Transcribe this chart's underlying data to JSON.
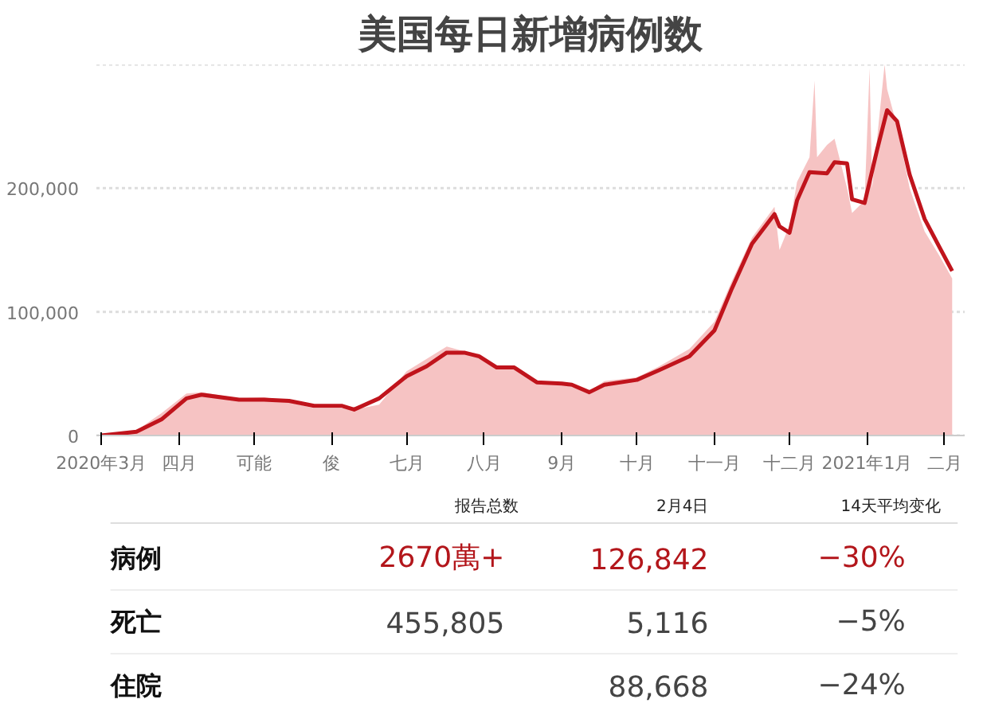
{
  "chart_data": {
    "type": "area",
    "title": "美国每日新增病例数",
    "series": [
      {
        "color": "#f6c3c3",
        "x": [
          "2020-03-01",
          "2020-03-15",
          "2020-03-25",
          "2020-04-04",
          "2020-04-10",
          "2020-04-25",
          "2020-05-05",
          "2020-05-15",
          "2020-05-25",
          "2020-06-05",
          "2020-06-10",
          "2020-06-20",
          "2020-07-01",
          "2020-07-09",
          "2020-07-17",
          "2020-07-24",
          "2020-07-30",
          "2020-08-06",
          "2020-08-13",
          "2020-08-22",
          "2020-09-01",
          "2020-09-12",
          "2020-09-18",
          "2020-10-01",
          "2020-10-10",
          "2020-10-22",
          "2020-11-01",
          "2020-11-08",
          "2020-11-16",
          "2020-11-25",
          "2020-11-27",
          "2020-12-01",
          "2020-12-04",
          "2020-12-09",
          "2020-12-11",
          "2020-12-12",
          "2020-12-16",
          "2020-12-19",
          "2020-12-24",
          "2020-12-26",
          "2020-12-31",
          "2021-01-02",
          "2021-01-03",
          "2021-01-05",
          "2021-01-08",
          "2021-01-09",
          "2021-01-13",
          "2021-01-18",
          "2021-01-24",
          "2021-01-30",
          "2021-02-04"
        ],
        "values": [
          0,
          4000,
          18000,
          34000,
          35000,
          30000,
          31000,
          27000,
          22000,
          22000,
          21000,
          25000,
          52000,
          62000,
          72000,
          68000,
          66000,
          55000,
          54000,
          42000,
          41000,
          36000,
          44000,
          47000,
          56000,
          70000,
          92000,
          125000,
          160000,
          185000,
          150000,
          170000,
          205000,
          225000,
          287000,
          225000,
          235000,
          240000,
          200000,
          180000,
          190000,
          297000,
          200000,
          240000,
          300000,
          280000,
          250000,
          200000,
          165000,
          145000,
          127000
        ]
      },
      {
        "type": "line",
        "color": "#c0141c",
        "x": [
          "2020-03-01",
          "2020-03-15",
          "2020-03-25",
          "2020-04-04",
          "2020-04-10",
          "2020-04-25",
          "2020-05-05",
          "2020-05-15",
          "2020-05-25",
          "2020-06-05",
          "2020-06-10",
          "2020-06-20",
          "2020-07-01",
          "2020-07-09",
          "2020-07-17",
          "2020-07-24",
          "2020-07-30",
          "2020-08-06",
          "2020-08-13",
          "2020-08-22",
          "2020-09-01",
          "2020-09-05",
          "2020-09-12",
          "2020-09-18",
          "2020-10-01",
          "2020-10-10",
          "2020-10-22",
          "2020-11-01",
          "2020-11-08",
          "2020-11-16",
          "2020-11-25",
          "2020-11-27",
          "2020-12-01",
          "2020-12-04",
          "2020-12-09",
          "2020-12-16",
          "2020-12-19",
          "2020-12-24",
          "2020-12-26",
          "2020-12-31",
          "2021-01-05",
          "2021-01-09",
          "2021-01-13",
          "2021-01-18",
          "2021-01-24",
          "2021-01-30",
          "2021-02-04"
        ],
        "values": [
          0,
          3000,
          13000,
          30000,
          33000,
          29000,
          29000,
          28000,
          24000,
          24000,
          21000,
          30000,
          48000,
          56000,
          67000,
          67000,
          64000,
          55000,
          55000,
          43000,
          42000,
          41000,
          35000,
          41000,
          45000,
          53000,
          64000,
          85000,
          119000,
          155000,
          179000,
          169000,
          164000,
          190000,
          213000,
          212000,
          221000,
          220000,
          191000,
          188000,
          231000,
          263000,
          254000,
          211000,
          175000,
          152000,
          133000
        ]
      }
    ],
    "ylim": [
      0,
      300000
    ],
    "yticks": [
      0,
      {
        "value": 100000,
        "label": "100,000"
      },
      {
        "value": 200000,
        "label": "200,000"
      },
      {
        "value": 300000,
        "label": null
      }
    ],
    "xlim": [
      "2020-02-28",
      "2021-02-09"
    ],
    "xticks": [
      {
        "value": "2020-03-01",
        "label": "2020年3月"
      },
      {
        "value": "2020-04-01",
        "label": "四月"
      },
      {
        "value": "2020-05-01",
        "label": "可能"
      },
      {
        "value": "2020-06-01",
        "label": "俊"
      },
      {
        "value": "2020-07-01",
        "label": "七月"
      },
      {
        "value": "2020-08-01",
        "label": "八月"
      },
      {
        "value": "2020-09-01",
        "label": "9月"
      },
      {
        "value": "2020-10-01",
        "label": "十月"
      },
      {
        "value": "2020-11-01",
        "label": "十一月"
      },
      {
        "value": "2020-12-01",
        "label": "十二月"
      },
      {
        "value": "2021-01-01",
        "label": "2021年1月"
      },
      {
        "value": "2021-02-01",
        "label": "二月"
      }
    ],
    "grid": "y",
    "annotations": [
      "报告总数",
      "2月4日",
      "14天平均变化",
      "病例",
      "2670萬+",
      "126,842",
      "−30%",
      "死亡",
      "455,805",
      "5,116",
      "−5%",
      "住院",
      "88,668",
      "−24%"
    ]
  }
}
